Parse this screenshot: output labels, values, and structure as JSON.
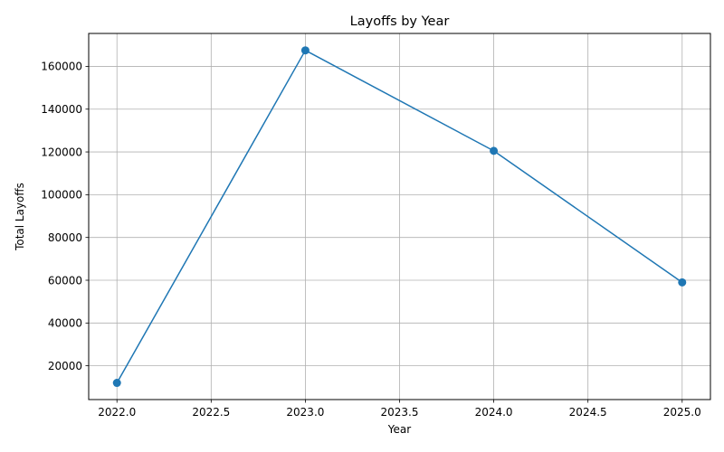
{
  "chart_data": {
    "type": "line",
    "title": "Layoffs by Year",
    "xlabel": "Year",
    "ylabel": "Total Layoffs",
    "x": [
      2022,
      2023,
      2024,
      2025
    ],
    "series": [
      {
        "values": [
          12000,
          167500,
          120500,
          59000
        ]
      }
    ],
    "xlim": [
      2021.85,
      2025.15
    ],
    "ylim": [
      4200,
      175400
    ],
    "xticks": [
      2022.0,
      2022.5,
      2023.0,
      2023.5,
      2024.0,
      2024.5,
      2025.0
    ],
    "xtick_labels": [
      "2022.0",
      "2022.5",
      "2023.0",
      "2023.5",
      "2024.0",
      "2024.5",
      "2025.0"
    ],
    "yticks": [
      20000,
      40000,
      60000,
      80000,
      100000,
      120000,
      140000,
      160000
    ],
    "ytick_labels": [
      "20000",
      "40000",
      "60000",
      "80000",
      "100000",
      "120000",
      "140000",
      "160000"
    ],
    "grid": true,
    "marker": "circle",
    "colors": {
      "line": "#1f77b4",
      "grid": "#b0b0b0",
      "axes": "#000000"
    }
  }
}
